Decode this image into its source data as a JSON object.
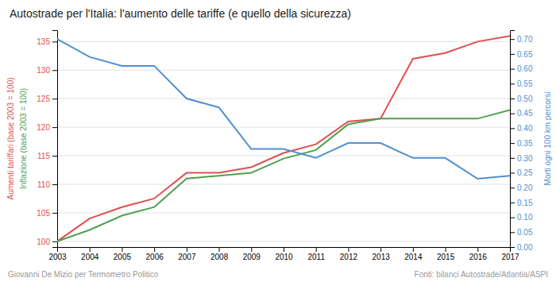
{
  "chart_data": {
    "type": "line",
    "title": "Autostrade per l'Italia: l'aumento delle tariffe (e quello della sicurezza)",
    "x": [
      2003,
      2004,
      2005,
      2006,
      2007,
      2008,
      2009,
      2010,
      2011,
      2012,
      2013,
      2014,
      2015,
      2016,
      2017
    ],
    "series": [
      {
        "name": "Aumenti tariffari (base 2003 = 100)",
        "color": "#e05050",
        "values": [
          100,
          104,
          106,
          107.5,
          112,
          112,
          113,
          115.5,
          117,
          121,
          121.5,
          132,
          133,
          135,
          136
        ]
      },
      {
        "name": "Inflazione (base 2003 = 100)",
        "color": "#50a050",
        "values": [
          100,
          102,
          104.5,
          106,
          111,
          111.5,
          112,
          114.5,
          116,
          120.5,
          121.5,
          121.5,
          121.5,
          121.5,
          123
        ]
      },
      {
        "name": "Morti ogni 100 km percorsi",
        "color": "#5090d0",
        "axis": "y2",
        "values": [
          0.7,
          0.64,
          0.61,
          0.61,
          0.5,
          0.47,
          0.33,
          0.33,
          0.3,
          0.35,
          0.35,
          0.3,
          0.3,
          0.23,
          0.24
        ]
      }
    ],
    "xlim": [
      2003,
      2017
    ],
    "xticks": [
      2003,
      2004,
      2005,
      2006,
      2007,
      2008,
      2009,
      2010,
      2011,
      2012,
      2013,
      2014,
      2015,
      2016,
      2017
    ],
    "ylim": [
      99,
      137
    ],
    "yticks": [
      100,
      105,
      110,
      115,
      120,
      125,
      130,
      135
    ],
    "y2lim": [
      0,
      0.73
    ],
    "y2ticks": [
      {
        "value": 0,
        "label": "0.00"
      },
      0.05,
      {
        "value": 0.1,
        "label": "0.10"
      },
      0.15,
      {
        "value": 0.2,
        "label": "0.20"
      },
      0.25,
      {
        "value": 0.3,
        "label": "0.30"
      },
      0.35,
      {
        "value": 0.4,
        "label": "0.40"
      },
      0.45,
      {
        "value": 0.5,
        "label": "0.50"
      },
      0.55,
      {
        "value": 0.6,
        "label": "0.60"
      },
      0.65,
      {
        "value": 0.7,
        "label": "0.70"
      }
    ],
    "grid": true,
    "annotations": [
      "Giovanni De Mizio per Termometro Politico",
      "Fonti: bilanci Autostrade/Atlantia/ASPI"
    ]
  }
}
